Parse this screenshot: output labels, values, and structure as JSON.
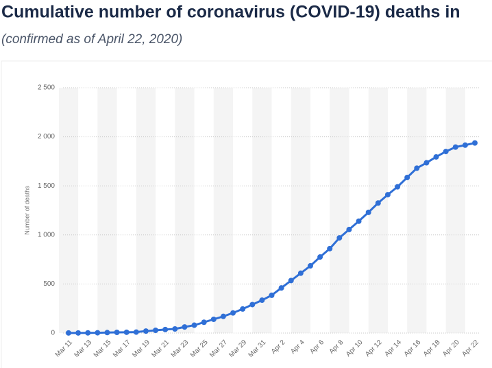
{
  "chart_data": {
    "type": "line",
    "title": "Cumulative number of coronavirus (COVID-19) deaths in",
    "subtitle": "(confirmed as of April 22, 2020)",
    "y_label": "Number of deaths",
    "categories": [
      "Mar 11",
      null,
      "Mar 13",
      null,
      "Mar 15",
      null,
      "Mar 17",
      null,
      "Mar 19",
      null,
      "Mar 21",
      null,
      "Mar 23",
      null,
      "Mar 25",
      null,
      "Mar 27",
      null,
      "Mar 29",
      null,
      "Mar 31",
      null,
      "Apr 2",
      null,
      "Apr 4",
      null,
      "Apr 6",
      null,
      "Apr 8",
      null,
      "Apr 10",
      null,
      "Apr 12",
      null,
      "Apr 14",
      null,
      "Apr 16",
      null,
      "Apr 18",
      null,
      "Apr 20",
      null,
      "Apr 22"
    ],
    "series": [
      {
        "name": "Number of deaths",
        "color": "#2f6fd6",
        "values": [
          1,
          1,
          2,
          3,
          5,
          7,
          8,
          10,
          20,
          28,
          36,
          42,
          62,
          80,
          110,
          140,
          170,
          205,
          245,
          290,
          335,
          385,
          460,
          535,
          610,
          685,
          775,
          860,
          970,
          1055,
          1140,
          1230,
          1325,
          1410,
          1490,
          1585,
          1680,
          1735,
          1795,
          1850,
          1895,
          1915,
          1937
        ]
      }
    ],
    "ylim": [
      0,
      2500
    ],
    "yticks": [
      0,
      500,
      {
        "value": 1000,
        "label": "1 000"
      },
      {
        "value": 1500,
        "label": "1 500"
      },
      {
        "value": 2000,
        "label": "2 000"
      },
      {
        "value": 2500,
        "label": "2 500"
      }
    ],
    "grid": true
  }
}
